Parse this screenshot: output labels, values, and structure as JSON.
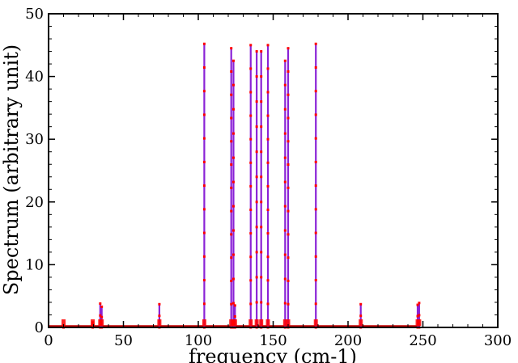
{
  "chart_data": {
    "type": "line",
    "title": "",
    "xlabel": "frequency (cm-1)",
    "ylabel": "Spectrum (arbitrary unit)",
    "xlim": [
      0,
      300
    ],
    "ylim": [
      0,
      50
    ],
    "x_ticks": [
      0,
      50,
      100,
      150,
      200,
      250,
      300
    ],
    "y_ticks": [
      0,
      10,
      20,
      30,
      40,
      50
    ],
    "grid": false,
    "legend": "none",
    "colors": {
      "line": "#8a22d6",
      "markers": "#ff0000",
      "baseline": "#c00000",
      "axis": "#000000"
    },
    "series": [
      {
        "peaks": [
          {
            "x": 10,
            "y": 0.25
          },
          {
            "x": 29.5,
            "y": 0.8
          },
          {
            "x": 34.5,
            "y": 3.8
          },
          {
            "x": 35.5,
            "y": 3.3
          },
          {
            "x": 74,
            "y": 3.7
          },
          {
            "x": 104,
            "y": 45.2
          },
          {
            "x": 122,
            "y": 44.5
          },
          {
            "x": 123.5,
            "y": 42.5
          },
          {
            "x": 124.5,
            "y": 3.5
          },
          {
            "x": 135,
            "y": 45.0
          },
          {
            "x": 139,
            "y": 44.0
          },
          {
            "x": 142,
            "y": 44.0
          },
          {
            "x": 146.5,
            "y": 45.0
          },
          {
            "x": 158,
            "y": 42.5
          },
          {
            "x": 160,
            "y": 44.5
          },
          {
            "x": 178.5,
            "y": 45.2
          },
          {
            "x": 208.5,
            "y": 3.7
          },
          {
            "x": 246.5,
            "y": 3.6
          },
          {
            "x": 247.5,
            "y": 3.9
          }
        ]
      }
    ]
  }
}
